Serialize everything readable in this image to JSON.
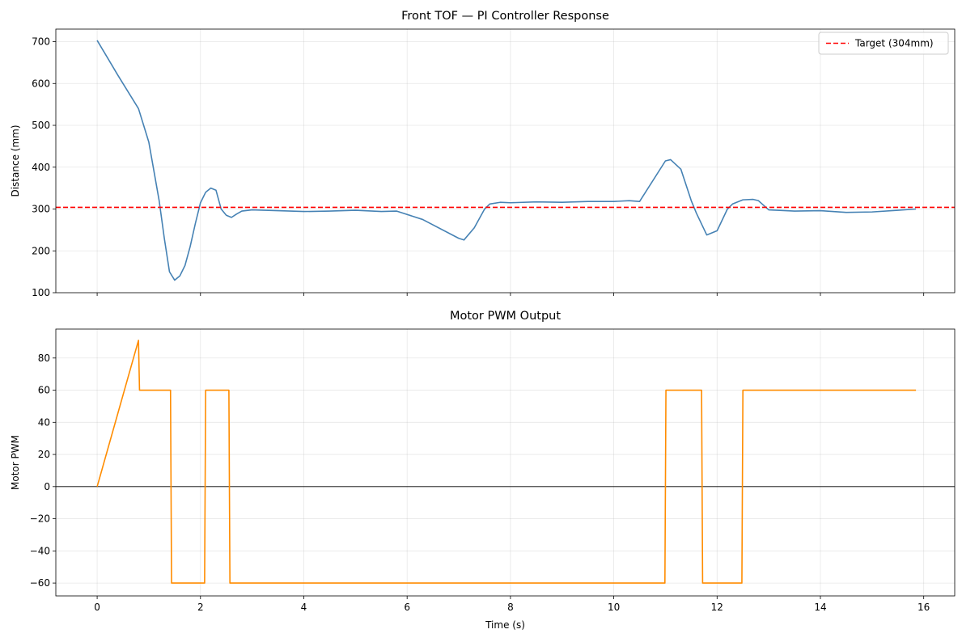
{
  "chart_data": [
    {
      "type": "line",
      "title": "Front TOF — PI Controller Response",
      "xlabel": "",
      "ylabel": "Distance (mm)",
      "xlim": [
        -0.8,
        16.6
      ],
      "ylim": [
        100,
        730
      ],
      "xticks": [
        0,
        2,
        4,
        6,
        8,
        10,
        12,
        14,
        16
      ],
      "xtick_labels_visible": false,
      "yticks": [
        100,
        200,
        300,
        400,
        500,
        600,
        700
      ],
      "ytick_labels": [
        "100",
        "200",
        "300",
        "400",
        "500",
        "600",
        "700"
      ],
      "grid": true,
      "legend": {
        "position": "top-right",
        "entries": [
          "Target (304mm)"
        ]
      },
      "series": [
        {
          "color": "#4682b4",
          "x": [
            0.0,
            0.4,
            0.8,
            0.9,
            1.0,
            1.1,
            1.2,
            1.3,
            1.4,
            1.5,
            1.6,
            1.7,
            1.8,
            1.9,
            2.0,
            2.1,
            2.2,
            2.3,
            2.4,
            2.5,
            2.6,
            2.7,
            2.8,
            3.0,
            3.5,
            4.0,
            4.5,
            5.0,
            5.5,
            5.8,
            6.3,
            7.0,
            7.1,
            7.3,
            7.5,
            7.6,
            7.8,
            8.0,
            8.5,
            9.0,
            9.5,
            10.0,
            10.3,
            10.5,
            11.0,
            11.1,
            11.3,
            11.5,
            11.6,
            11.8,
            12.0,
            12.2,
            12.3,
            12.5,
            12.7,
            12.8,
            13.0,
            13.5,
            14.0,
            14.5,
            15.0,
            15.5,
            15.85
          ],
          "values": [
            703,
            620,
            540,
            500,
            460,
            390,
            320,
            230,
            150,
            130,
            140,
            165,
            210,
            265,
            315,
            340,
            350,
            345,
            300,
            285,
            280,
            288,
            295,
            298,
            296,
            294,
            295,
            297,
            294,
            295,
            275,
            230,
            226,
            255,
            300,
            312,
            316,
            315,
            317,
            316,
            318,
            318,
            320,
            318,
            415,
            418,
            395,
            320,
            290,
            238,
            248,
            300,
            312,
            322,
            323,
            320,
            298,
            295,
            296,
            292,
            293,
            297,
            300
          ]
        },
        {
          "name": "Target (304mm)",
          "color": "#ff0000",
          "dashed": true,
          "x": [
            -0.8,
            16.6
          ],
          "values": [
            304,
            304
          ]
        }
      ]
    },
    {
      "type": "line",
      "title": "Motor PWM Output",
      "xlabel": "Time (s)",
      "ylabel": "Motor PWM",
      "xlim": [
        -0.8,
        16.6
      ],
      "ylim": [
        -68,
        98
      ],
      "xticks": [
        0,
        2,
        4,
        6,
        8,
        10,
        12,
        14,
        16
      ],
      "xtick_labels": [
        "0",
        "2",
        "4",
        "6",
        "8",
        "10",
        "12",
        "14",
        "16"
      ],
      "yticks": [
        -60,
        -40,
        -20,
        0,
        20,
        40,
        60,
        80
      ],
      "ytick_labels": [
        "−60",
        "−40",
        "−20",
        "0",
        "20",
        "40",
        "60",
        "80"
      ],
      "grid": true,
      "zero_line": true,
      "series": [
        {
          "color": "#ff8c00",
          "x": [
            0.0,
            0.8,
            0.82,
            1.42,
            1.44,
            2.08,
            2.1,
            2.55,
            2.57,
            10.99,
            11.01,
            11.7,
            11.72,
            12.48,
            12.5,
            15.85
          ],
          "values": [
            0,
            91,
            60,
            60,
            -60,
            -60,
            60,
            60,
            -60,
            -60,
            60,
            60,
            -60,
            -60,
            60,
            60
          ]
        }
      ]
    }
  ]
}
